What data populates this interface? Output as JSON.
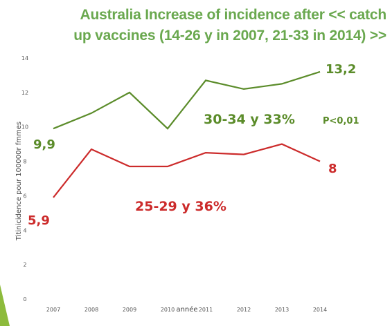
{
  "title": {
    "line1": "Australia Increase of incidence after << catch",
    "line2": "up vaccines (14-26 y in 2007, 21-33 in 2014) >>"
  },
  "colors": {
    "title": "#6aa84f",
    "green_series": "#5b8c2a",
    "red_series": "#cc2b2b",
    "accent": "#8dbb3c"
  },
  "chart_data": {
    "type": "line",
    "title": "Australia Increase of incidence after << catch up vaccines (14-26 y in 2007, 21-33 in 2014) >>",
    "xlabel": "année",
    "ylabel": "Titinicidence pour 100000r fmmes",
    "categories": [
      "2007",
      "2008",
      "2009",
      "2010",
      "2011",
      "2012",
      "2013",
      "2014"
    ],
    "ylim": [
      0,
      14
    ],
    "yticks": [
      "0",
      "2",
      "4",
      "6",
      "8",
      "10",
      "12",
      "14"
    ],
    "grid": false,
    "series": [
      {
        "name": "30-34 y 33%",
        "color": "#5b8c2a",
        "values": [
          9.9,
          10.8,
          12.0,
          9.9,
          12.7,
          12.2,
          12.5,
          13.2
        ]
      },
      {
        "name": "25-29 y 36%",
        "color": "#cc2b2b",
        "values": [
          5.9,
          8.7,
          7.7,
          7.7,
          8.5,
          8.4,
          9.0,
          8.0
        ]
      }
    ],
    "annotations": {
      "green_start": "9,9",
      "green_end": "13,2",
      "green_label": "30-34 y 33%",
      "pvalue": "P<0,01",
      "red_start": "5,9",
      "red_end": "8",
      "red_label": "25-29 y 36%"
    }
  }
}
